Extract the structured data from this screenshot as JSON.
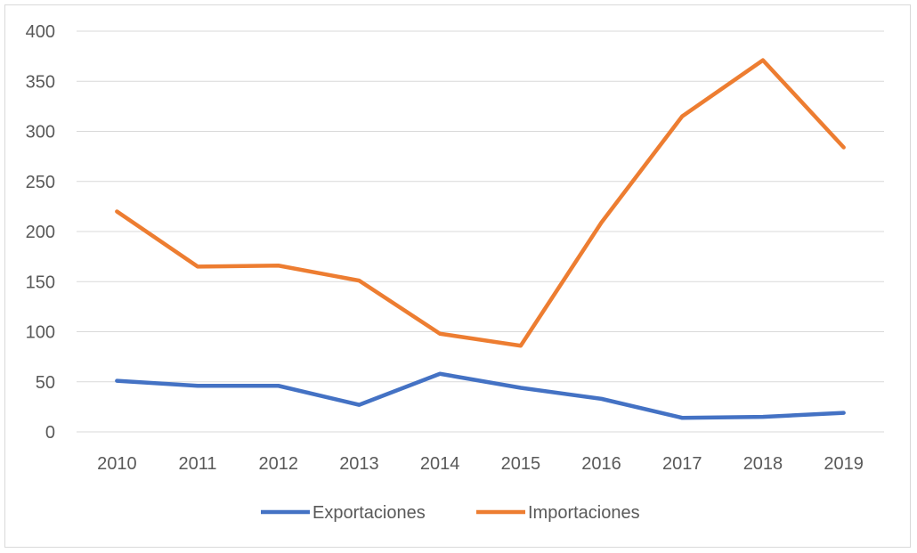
{
  "chart_data": {
    "type": "line",
    "title": "",
    "xlabel": "",
    "ylabel": "",
    "categories": [
      "2010",
      "2011",
      "2012",
      "2013",
      "2014",
      "2015",
      "2016",
      "2017",
      "2018",
      "2019"
    ],
    "ylim": [
      0,
      400
    ],
    "yticks": [
      "0",
      "50",
      "100",
      "150",
      "200",
      "250",
      "300",
      "350",
      "400"
    ],
    "grid": true,
    "legend_position": "bottom",
    "series": [
      {
        "name": "Exportaciones",
        "color": "#4472C4",
        "values": [
          51,
          46,
          46,
          27,
          58,
          44,
          33,
          14,
          15,
          19
        ]
      },
      {
        "name": "Importaciones",
        "color": "#ED7D31",
        "values": [
          220,
          165,
          166,
          151,
          98,
          86,
          209,
          315,
          371,
          284
        ]
      }
    ]
  }
}
